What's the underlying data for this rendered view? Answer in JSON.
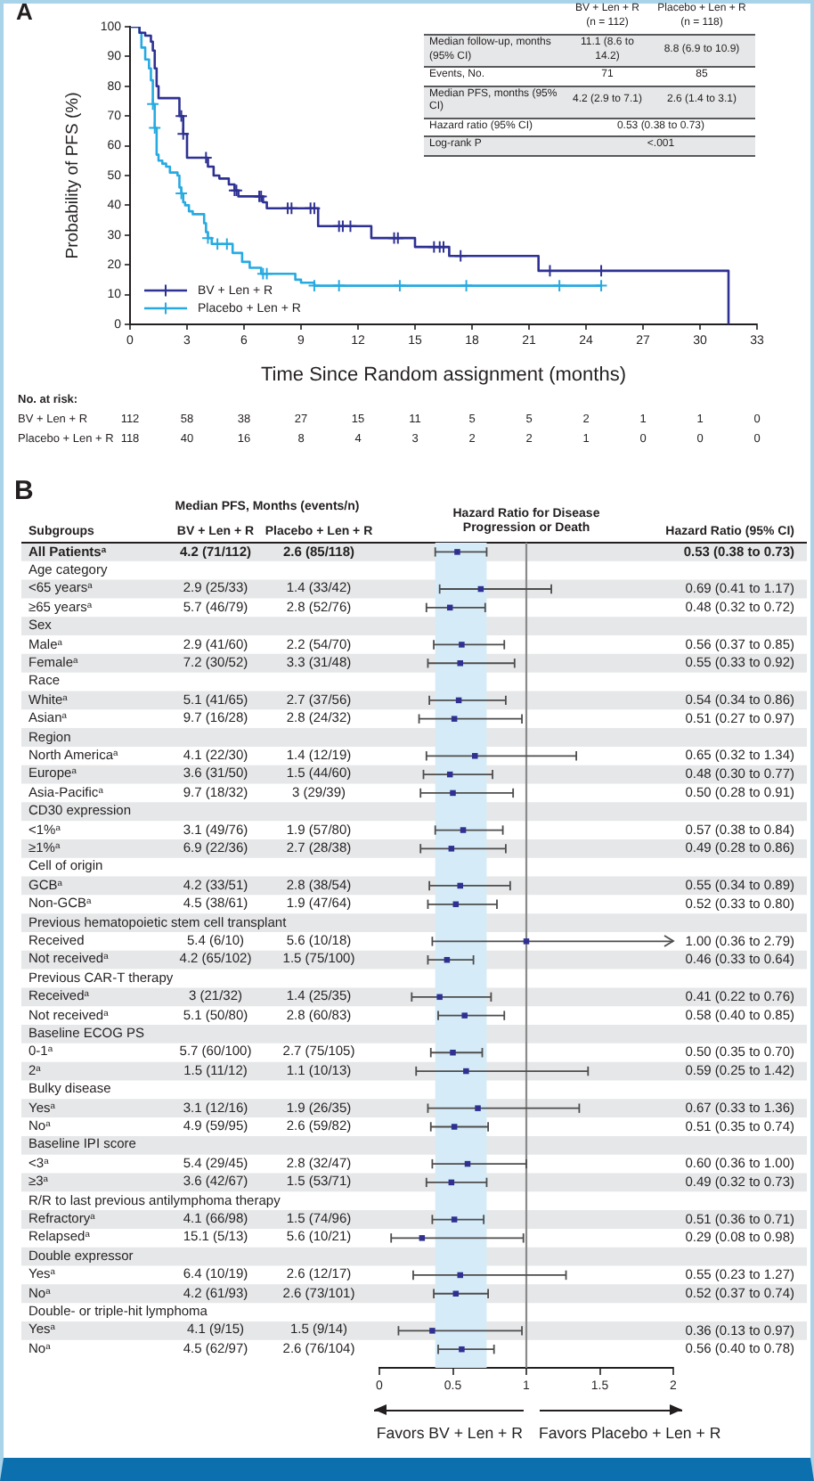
{
  "chart_data": [
    {
      "type": "step",
      "annotations": [
        "A"
      ],
      "xlabel": "Time Since Random assignment (months)",
      "ylabel": "Probability of PFS (%)",
      "xlim": [
        0,
        33
      ],
      "xticks": [
        0,
        3,
        6,
        9,
        12,
        15,
        18,
        21,
        24,
        27,
        30,
        33
      ],
      "ylim": [
        0,
        100
      ],
      "yticks": [
        0,
        10,
        20,
        30,
        40,
        50,
        60,
        70,
        80,
        90,
        100
      ],
      "legend": "bottom left",
      "series": [
        {
          "name": "BV + Len + R",
          "color": "#2e3192",
          "x": [
            0,
            0.5,
            0.8,
            1.1,
            1.2,
            1.3,
            1.4,
            1.5,
            2.6,
            2.8,
            3.0,
            4.1,
            4.4,
            4.7,
            5.2,
            5.5,
            5.7,
            7.0,
            7.2,
            9.9,
            12.7,
            15.0,
            16.8,
            21.5,
            31.5
          ],
          "values": [
            100,
            98,
            97,
            95,
            92,
            86,
            80,
            76,
            70,
            64,
            56,
            53,
            50,
            49,
            47,
            45,
            43,
            41,
            39,
            33,
            29,
            26,
            23,
            18,
            0
          ]
        },
        {
          "name": "Placebo + Len + R",
          "color": "#27aae1",
          "x": [
            0,
            0.5,
            0.6,
            0.8,
            1.0,
            1.1,
            1.2,
            1.3,
            1.4,
            1.5,
            1.7,
            1.9,
            2.1,
            2.5,
            2.6,
            2.7,
            2.8,
            2.9,
            3.1,
            3.3,
            3.9,
            4.0,
            4.1,
            4.3,
            5.4,
            5.9,
            6.3,
            6.9,
            8.7,
            9.0,
            9.7,
            24.8
          ],
          "values": [
            100,
            98,
            93,
            89,
            86,
            82,
            74,
            66,
            57,
            55,
            54,
            53,
            51,
            50,
            46,
            44,
            41,
            40,
            38,
            37,
            34,
            31,
            29,
            27,
            24,
            21,
            19,
            17,
            15,
            14,
            13,
            13
          ]
        },
        {
          "type": "scatter",
          "marker": "cross",
          "color": "#2e3192",
          "x": [
            2.7,
            2.8,
            4.0,
            5.5,
            5.6,
            6.8,
            6.9,
            8.3,
            8.5,
            9.5,
            9.7,
            11.0,
            11.2,
            11.6,
            13.9,
            14.1,
            16.0,
            16.3,
            16.5,
            17.4,
            22.1,
            24.8
          ],
          "values": [
            70,
            64,
            56,
            45,
            45,
            43,
            43,
            39,
            39,
            39,
            39,
            33,
            33,
            33,
            29,
            29,
            26,
            26,
            26,
            23,
            18,
            18
          ]
        },
        {
          "type": "scatter",
          "marker": "cross",
          "color": "#27aae1",
          "x": [
            1.2,
            1.3,
            2.7,
            4.1,
            4.6,
            5.1,
            7.0,
            7.2,
            9.7,
            11.0,
            14.2,
            17.7,
            22.6,
            24.8
          ],
          "values": [
            74,
            66,
            44,
            29,
            27,
            27,
            17,
            17,
            13,
            13,
            13,
            13,
            13,
            13
          ]
        }
      ]
    },
    {
      "type": "other",
      "categories": [
        "BV + Len + R (n = 112)",
        "Placebo + Len + R (n = 118)"
      ],
      "y_categories": [
        "Median follow-up, months (95% CI)",
        "Events, No.",
        "Median PFS, months (95% CI)",
        "Hazard ratio (95% CI)",
        "Log-rank P"
      ],
      "cell_labels": [
        [
          "11.1 (8.6 to 14.2)",
          "8.8 (6.9 to 10.9)"
        ],
        [
          "71",
          "85"
        ],
        [
          "4.2 (2.9 to 7.1)",
          "2.6 (1.4 to 3.1)"
        ],
        [
          "0.53 (0.38 to 0.73)",
          null
        ],
        [
          "<.001",
          null
        ]
      ]
    },
    {
      "type": "other",
      "title": "No. at risk:",
      "y_categories": [
        "BV + Len + R",
        "Placebo + Len + R"
      ],
      "cell_labels": [
        [
          "112",
          "58",
          "38",
          "27",
          "15",
          "11",
          "5",
          "5",
          "2",
          "1",
          "1",
          "0"
        ],
        [
          "118",
          "40",
          "16",
          "8",
          "4",
          "3",
          "2",
          "2",
          "1",
          "0",
          "0",
          "0"
        ]
      ]
    },
    {
      "type": "other",
      "annotations": [
        "B"
      ],
      "title": "Median PFS, Months (events/n)",
      "categories": [
        "BV + Len + R",
        "Placebo + Len + R"
      ],
      "cell_labels": [
        [
          "4.2 (71/112)",
          "2.6 (85/118)"
        ],
        [
          null,
          null
        ],
        [
          "2.9 (25/33)",
          "1.4 (33/42)"
        ],
        [
          "5.7 (46/79)",
          "2.8 (52/76)"
        ],
        [
          null,
          null
        ],
        [
          "2.9 (41/60)",
          "2.2 (54/70)"
        ],
        [
          "7.2 (30/52)",
          "3.3 (31/48)"
        ],
        [
          null,
          null
        ],
        [
          "5.1 (41/65)",
          "2.7 (37/56)"
        ],
        [
          "9.7 (16/28)",
          "2.8 (24/32)"
        ],
        [
          null,
          null
        ],
        [
          "4.1 (22/30)",
          "1.4 (12/19)"
        ],
        [
          "3.6 (31/50)",
          "1.5 (44/60)"
        ],
        [
          "9.7 (18/32)",
          "3 (29/39)"
        ],
        [
          null,
          null
        ],
        [
          "3.1 (49/76)",
          "1.9 (57/80)"
        ],
        [
          "6.9 (22/36)",
          "2.7 (28/38)"
        ],
        [
          null,
          null
        ],
        [
          "4.2 (33/51)",
          "2.8 (38/54)"
        ],
        [
          "4.5 (38/61)",
          "1.9 (47/64)"
        ],
        [
          null,
          null
        ],
        [
          "5.4 (6/10)",
          "5.6 (10/18)"
        ],
        [
          "4.2 (65/102)",
          "1.5 (75/100)"
        ],
        [
          null,
          null
        ],
        [
          "3 (21/32)",
          "1.4 (25/35)"
        ],
        [
          "5.1 (50/80)",
          "2.8 (60/83)"
        ],
        [
          null,
          null
        ],
        [
          "5.7 (60/100)",
          "2.7 (75/105)"
        ],
        [
          "1.5 (11/12)",
          "1.1 (10/13)"
        ],
        [
          null,
          null
        ],
        [
          "3.1 (12/16)",
          "1.9 (26/35)"
        ],
        [
          "4.9 (59/95)",
          "2.6 (59/82)"
        ],
        [
          null,
          null
        ],
        [
          "5.4 (29/45)",
          "2.8 (32/47)"
        ],
        [
          "3.6 (42/67)",
          "1.5 (53/71)"
        ],
        [
          null,
          null
        ],
        [
          "4.1 (66/98)",
          "1.5 (74/96)"
        ],
        [
          "15.1 (5/13)",
          "5.6 (10/21)"
        ],
        [
          null,
          null
        ],
        [
          "6.4 (10/19)",
          "2.6 (12/17)"
        ],
        [
          "4.2 (61/93)",
          "2.6 (73/101)"
        ],
        [
          null,
          null
        ],
        [
          "4.1 (9/15)",
          "1.5 (9/14)"
        ],
        [
          "4.5 (62/97)",
          "2.6 (76/104)"
        ]
      ]
    },
    {
      "type": "scatter",
      "orientation": "horizontal",
      "title": "Hazard Ratio for Disease Progression or Death",
      "ylabel": "Subgroups",
      "y2label": "Hazard Ratio (95% CI)",
      "marker": "square",
      "color": "#2e3192",
      "categories": [
        "All Patients$^{a}$",
        "Age category",
        "<65 years$^{a}$",
        "≥65 years$^{a}$",
        "Sex",
        "Male$^{a}$",
        "Female$^{a}$",
        "Race",
        "White$^{a}$",
        "Asian$^{a}$",
        "Region",
        "North America$^{a}$",
        "Europe$^{a}$",
        "Asia-Pacific$^{a}$",
        "CD30 expression",
        "<1%$^{a}$",
        "≥1%$^{a}$",
        "Cell of origin",
        "GCB$^{a}$",
        "Non-GCB$^{a}$",
        "Previous hematopoietic stem cell transplant",
        "Received",
        "Not received$^{a}$",
        "Previous CAR-T therapy",
        "Received$^{a}$",
        "Not received$^{a}$",
        "Baseline ECOG PS",
        "0-1$^{a}$",
        "2$^{a}$",
        "Bulky disease",
        "Yes$^{a}$",
        "No$^{a}$",
        "Baseline IPI score",
        "<3$^{a}$",
        "≥3$^{a}$",
        "R/R to last previous antilymphoma therapy",
        "Refractory$^{a}$",
        "Relapsed$^{a}$",
        "Double expressor",
        "Yes$^{a}$",
        "No$^{a}$",
        "Double- or triple-hit lymphoma",
        "Yes$^{a}$",
        "No$^{a}$"
      ],
      "values": [
        0.53,
        null,
        0.69,
        0.48,
        null,
        0.56,
        0.55,
        null,
        0.54,
        0.51,
        null,
        0.65,
        0.48,
        0.5,
        null,
        0.57,
        0.49,
        null,
        0.55,
        0.52,
        null,
        1,
        0.46,
        null,
        0.41,
        0.58,
        null,
        0.5,
        0.59,
        null,
        0.67,
        0.51,
        null,
        0.6,
        0.49,
        null,
        0.51,
        0.29,
        null,
        0.55,
        0.52,
        null,
        0.36,
        0.56
      ],
      "errors": [
        [
          0.38,
          0.73
        ],
        null,
        [
          0.41,
          1.17
        ],
        [
          0.32,
          0.72
        ],
        null,
        [
          0.37,
          0.85
        ],
        [
          0.33,
          0.92
        ],
        null,
        [
          0.34,
          0.86
        ],
        [
          0.27,
          0.97
        ],
        null,
        [
          0.32,
          1.34
        ],
        [
          0.3,
          0.77
        ],
        [
          0.28,
          0.91
        ],
        null,
        [
          0.38,
          0.84
        ],
        [
          0.28,
          0.86
        ],
        null,
        [
          0.34,
          0.89
        ],
        [
          0.33,
          0.8
        ],
        null,
        [
          0.36,
          2.79
        ],
        [
          0.33,
          0.64
        ],
        null,
        [
          0.22,
          0.76
        ],
        [
          0.4,
          0.85
        ],
        null,
        [
          0.35,
          0.7
        ],
        [
          0.25,
          1.42
        ],
        null,
        [
          0.33,
          1.36
        ],
        [
          0.35,
          0.74
        ],
        null,
        [
          0.36,
          1.0
        ],
        [
          0.32,
          0.73
        ],
        null,
        [
          0.36,
          0.71
        ],
        [
          0.08,
          0.98
        ],
        null,
        [
          0.23,
          1.27
        ],
        [
          0.37,
          0.74
        ],
        null,
        [
          0.13,
          0.97
        ],
        [
          0.4,
          0.78
        ]
      ],
      "value_labels": [
        "0.53 (0.38 to 0.73)",
        null,
        "0.69 (0.41 to 1.17)",
        "0.48 (0.32 to 0.72)",
        null,
        "0.56 (0.37 to 0.85)",
        "0.55 (0.33 to 0.92)",
        null,
        "0.54 (0.34 to 0.86)",
        "0.51 (0.27 to 0.97)",
        null,
        "0.65 (0.32 to 1.34)",
        "0.48 (0.30 to 0.77)",
        "0.50 (0.28 to 0.91)",
        null,
        "0.57 (0.38 to 0.84)",
        "0.49 (0.28 to 0.86)",
        null,
        "0.55 (0.34 to 0.89)",
        "0.52 (0.33 to 0.80)",
        null,
        "1.00 (0.36 to 2.79)",
        "0.46 (0.33 to 0.64)",
        null,
        "0.41 (0.22 to 0.76)",
        "0.58 (0.40 to 0.85)",
        null,
        "0.50 (0.35 to 0.70)",
        "0.59 (0.25 to 1.42)",
        null,
        "0.67 (0.33 to 1.36)",
        "0.51 (0.35 to 0.74)",
        null,
        "0.60 (0.36 to 1.00)",
        "0.49 (0.32 to 0.73)",
        null,
        "0.51 (0.36 to 0.71)",
        "0.29 (0.08 to 0.98)",
        null,
        "0.55 (0.23 to 1.27)",
        "0.52 (0.37 to 0.74)",
        null,
        "0.36 (0.13 to 0.97)",
        "0.56 (0.40 to 0.78)"
      ],
      "xlim": [
        0,
        2
      ],
      "xticks": [
        0,
        0.5,
        1,
        1.5,
        2
      ],
      "ref_lines": [
        {
          "axis": "x",
          "value": 1,
          "color": "#8a8a8a"
        }
      ],
      "bands": [
        {
          "axis": "x",
          "from": 0.38,
          "to": 0.73,
          "color": "#d6ebf8"
        }
      ],
      "annotations": [
        "Favors BV + Len + R",
        "Favors Placebo + Len + R"
      ]
    }
  ]
}
